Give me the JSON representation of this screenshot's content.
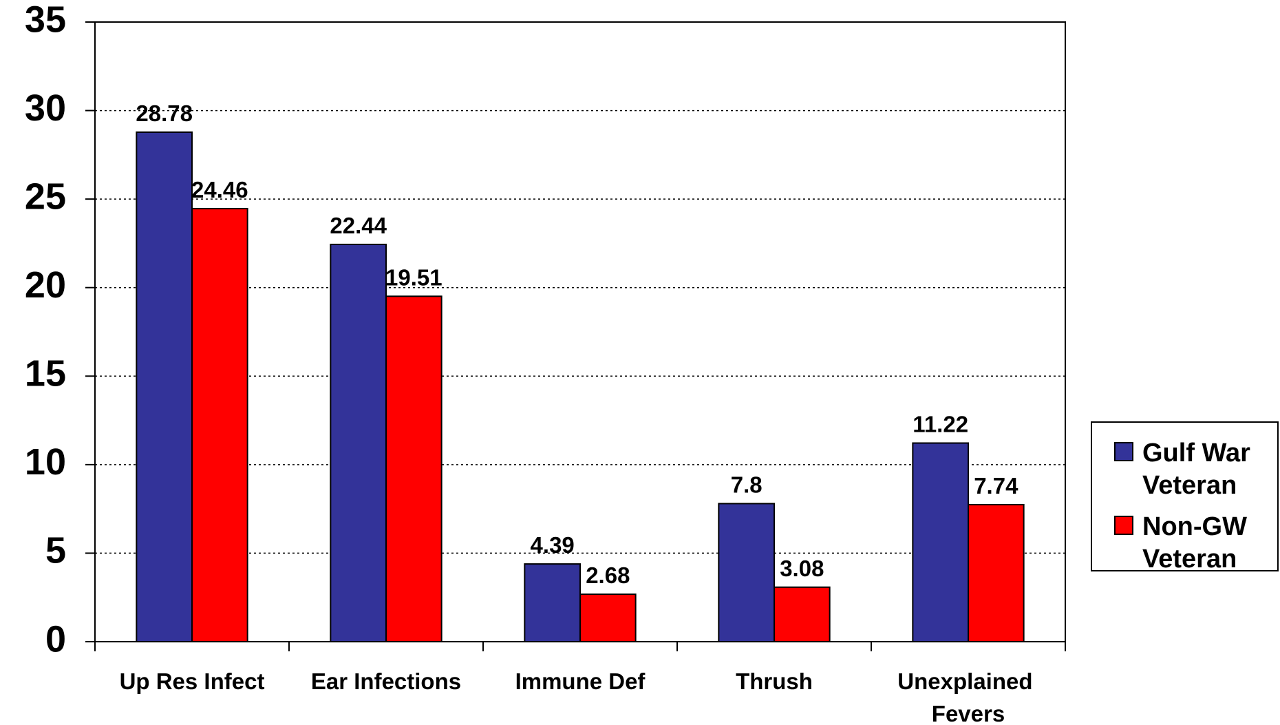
{
  "chart_data": {
    "type": "bar",
    "categories": [
      "Up Res Infect",
      "Ear Infections",
      "Immune Def",
      "Thrush",
      "Unexplained Fevers"
    ],
    "series": [
      {
        "name": "Gulf War Veteran",
        "color": "#333399",
        "values": [
          28.78,
          22.44,
          4.39,
          7.8,
          11.22
        ]
      },
      {
        "name": "Non-GW Veteran",
        "color": "#ff0000",
        "values": [
          24.46,
          19.51,
          2.68,
          3.08,
          7.74
        ]
      }
    ],
    "ylim": [
      0,
      35
    ],
    "yticks": [
      0,
      5,
      10,
      15,
      20,
      25,
      30,
      35
    ],
    "grid": true,
    "legend": "right"
  }
}
